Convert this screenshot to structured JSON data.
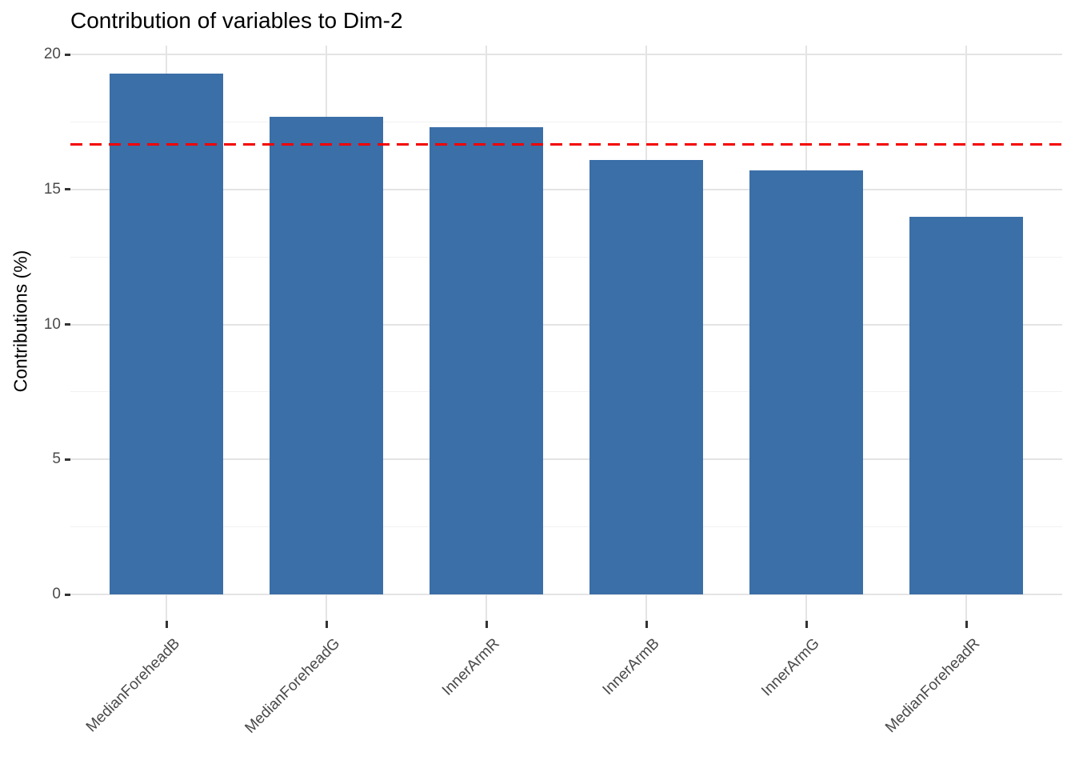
{
  "chart_data": {
    "type": "bar",
    "title": "Contribution of variables to Dim-2",
    "ylabel": "Contributions (%)",
    "xlabel": "",
    "categories": [
      "MedianForeheadB",
      "MedianForeheadG",
      "InnerArmR",
      "InnerArmB",
      "InnerArmG",
      "MedianForeheadR"
    ],
    "values": [
      19.3,
      17.7,
      17.3,
      16.1,
      15.7,
      14.0
    ],
    "reference_line": {
      "value": 16.67,
      "style": "dashed",
      "color": "#f40000"
    },
    "yticks": [
      0,
      5,
      10,
      15,
      20
    ],
    "yticks_minor": [
      2.5,
      7.5,
      12.5,
      17.5
    ],
    "ylim": [
      0,
      20.3
    ],
    "x_tick_angle": 45,
    "grid": "on",
    "legend": "none",
    "colors": {
      "bar_fill": "#3b6fa8",
      "grid_major": "#e4e4e4",
      "grid_minor": "#f1f1f1",
      "tick_mark": "#333333",
      "tick_text": "#4a4a4a",
      "title_text": "#000000"
    }
  }
}
